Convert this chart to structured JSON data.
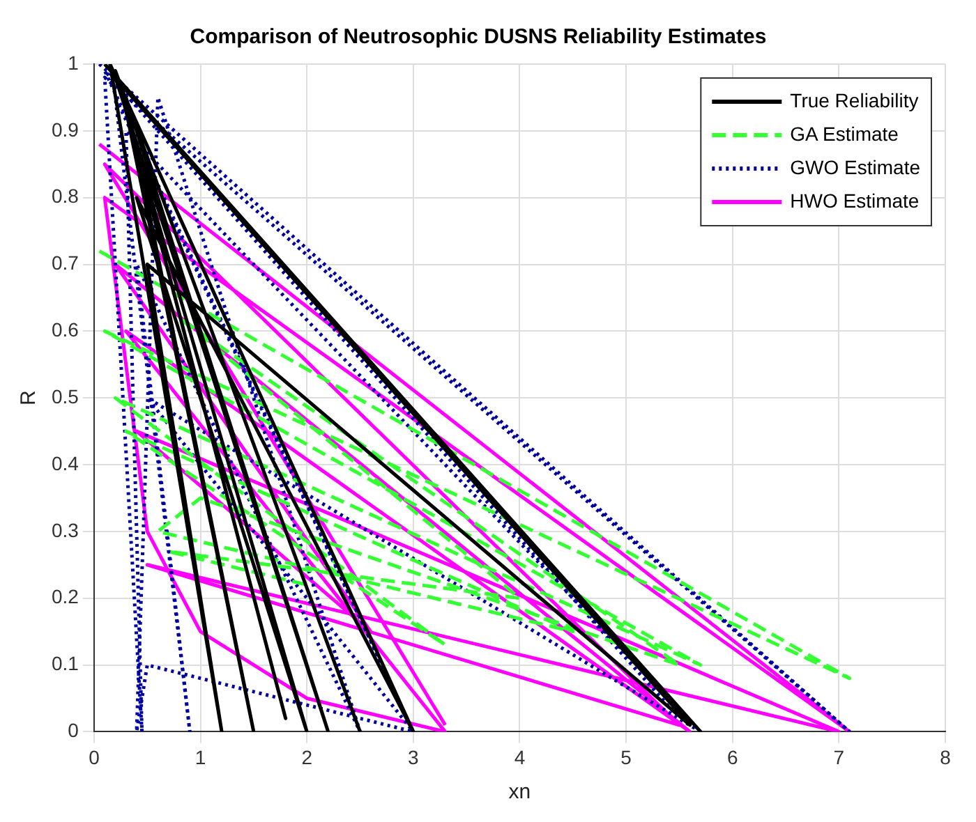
{
  "chart_data": {
    "type": "line",
    "title": "Comparison of Neutrosophic DUSNS Reliability Estimates",
    "xlabel": "xn",
    "ylabel": "R",
    "xlim": [
      0,
      8
    ],
    "xticks": [
      0,
      1,
      2,
      3,
      4,
      5,
      6,
      7,
      8
    ],
    "ylim": [
      0,
      1
    ],
    "yticks": [
      0,
      0.1,
      0.2,
      0.3,
      0.4,
      0.5,
      0.6,
      0.7,
      0.8,
      0.9,
      1
    ],
    "grid": true,
    "legend": "top right",
    "marker": "none",
    "series": [
      {
        "name": "True Reliability",
        "color": "#000000",
        "line_style": "solid",
        "x": [
          0.1,
          5.7,
          0.2,
          2.2,
          0.3,
          1.5,
          0.25,
          5.6,
          0.5,
          1.2,
          0.15,
          3,
          0.4,
          2,
          0.35,
          1.8,
          0.2,
          2.5
        ],
        "values": [
          1,
          0,
          0.98,
          0,
          0.95,
          0,
          0.97,
          0.01,
          0.7,
          0,
          1,
          0,
          0.8,
          0,
          0.9,
          0.02,
          0.99,
          0
        ]
      },
      {
        "name": "GA Estimate",
        "color": "#33ff33",
        "line_style": "dashed",
        "x": [
          0.05,
          7.1,
          0.1,
          5.7,
          0.2,
          3.3,
          0.3,
          4.5,
          0.6,
          1,
          5.5,
          0.8,
          4,
          0.7,
          2
        ],
        "values": [
          0.72,
          0.08,
          0.6,
          0.1,
          0.5,
          0.13,
          0.45,
          0.15,
          0.3,
          0.35,
          0.1,
          0.62,
          0.2,
          0.27,
          0.22
        ]
      },
      {
        "name": "GWO Estimate",
        "color": "#0000a0",
        "line_style": "dotted",
        "x": [
          0.05,
          7.1,
          0.1,
          0.45,
          0.3,
          5.7,
          0.5,
          3,
          0.2,
          0.9,
          0.4,
          2.5,
          0.6,
          0.4,
          0.5,
          3,
          0.1,
          5.5
        ],
        "values": [
          1,
          0,
          0.98,
          0,
          0.9,
          0,
          0.5,
          0,
          0.95,
          0,
          0.7,
          0,
          0.95,
          0,
          0.1,
          0,
          0.99,
          0.02
        ]
      },
      {
        "name": "HWO Estimate",
        "color": "#ff00ff",
        "line_style": "solid",
        "x": [
          0.05,
          7.1,
          0.1,
          0.5,
          1,
          2,
          3.3,
          0.3,
          5.6,
          0.2,
          2.6,
          0.4,
          7,
          0.5,
          5.5,
          0.1,
          3.3
        ],
        "values": [
          0.88,
          0,
          0.8,
          0.3,
          0.15,
          0.05,
          0,
          0.6,
          0,
          0.7,
          0.15,
          0.45,
          0,
          0.25,
          0.01,
          0.85,
          0.01
        ]
      }
    ]
  }
}
